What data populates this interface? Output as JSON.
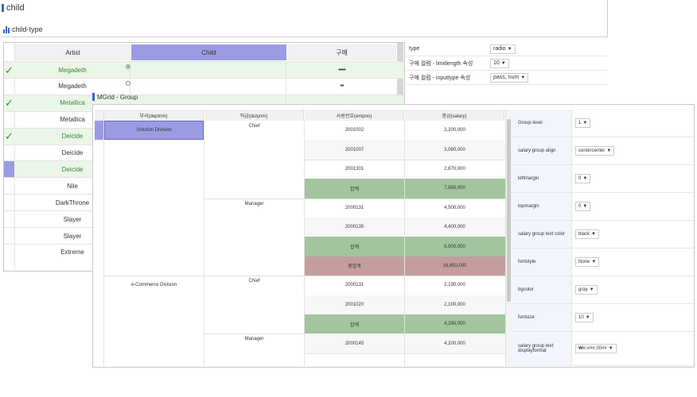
{
  "page": {
    "title": "child",
    "subtitle": "child-type"
  },
  "child_grid": {
    "headers": {
      "artist": "Artist",
      "child": "Child",
      "pass": "구매"
    },
    "rows": [
      {
        "artist": "Megadeth",
        "checked": true,
        "highlight": true,
        "green": true,
        "radio": "on",
        "pass": "••••••"
      },
      {
        "artist": "Megadeth",
        "checked": false,
        "highlight": false,
        "green": false,
        "radio": "off",
        "pass": "•••"
      },
      {
        "artist": "Metallica",
        "checked": true,
        "highlight": true,
        "green": true,
        "radio": "",
        "pass": ""
      },
      {
        "artist": "Metallica",
        "checked": false,
        "highlight": false,
        "green": false,
        "radio": "",
        "pass": ""
      },
      {
        "artist": "Deicide",
        "checked": true,
        "highlight": true,
        "green": true,
        "radio": "",
        "pass": ""
      },
      {
        "artist": "Deicide",
        "checked": false,
        "highlight": false,
        "green": false,
        "radio": "",
        "pass": ""
      },
      {
        "artist": "Deicide",
        "checked": false,
        "selected": true,
        "highlight": true,
        "green": true,
        "radio": "",
        "pass": ""
      },
      {
        "artist": "Nile",
        "checked": false,
        "highlight": false,
        "green": false,
        "radio": "",
        "pass": ""
      },
      {
        "artist": "DarkThrone",
        "checked": false,
        "highlight": false,
        "green": false,
        "radio": "",
        "pass": ""
      },
      {
        "artist": "Slayer",
        "checked": false,
        "highlight": false,
        "green": false,
        "radio": "",
        "pass": ""
      },
      {
        "artist": "Slayer",
        "checked": false,
        "highlight": false,
        "green": false,
        "radio": "",
        "pass": ""
      },
      {
        "artist": "Extreme",
        "checked": false,
        "highlight": false,
        "green": false,
        "radio": "",
        "pass": ""
      }
    ]
  },
  "child_props": [
    {
      "label": "type",
      "value": "radio"
    },
    {
      "label": "구매 컬럼 - limitlength 속성",
      "value": "10"
    },
    {
      "label": "구매 컬럼 - inputtype 속성",
      "value": "pass, num"
    }
  ],
  "mgrid": {
    "title": "MGrid - Group",
    "headers": [
      "부서(deptnm)",
      "직급(dutynm)",
      "사원번호(empno)",
      "봉급(salary)"
    ],
    "rows": [
      {
        "dept": "Solution Division",
        "duty": "Chief",
        "empno": "2001002",
        "salary": "2,200,000",
        "type": "data"
      },
      {
        "dept": "",
        "duty": "",
        "empno": "2001007",
        "salary": "3,080,000",
        "type": "data"
      },
      {
        "dept": "",
        "duty": "",
        "empno": "2001301",
        "salary": "2,670,000",
        "type": "data"
      },
      {
        "dept": "",
        "duty": "",
        "empno": "합계",
        "salary": "7,950,000",
        "type": "subtotal"
      },
      {
        "dept": "",
        "duty": "Manager",
        "empno": "2000131",
        "salary": "4,500,000",
        "type": "data"
      },
      {
        "dept": "",
        "duty": "",
        "empno": "2000135",
        "salary": "4,400,000",
        "type": "data"
      },
      {
        "dept": "",
        "duty": "",
        "empno": "합계",
        "salary": "8,900,000",
        "type": "subtotal"
      },
      {
        "dept": "",
        "duty": "",
        "empno": "총합계",
        "salary": "16,850,000",
        "type": "total"
      },
      {
        "dept": "e-Commerce Division",
        "duty": "Chief",
        "empno": "2000131",
        "salary": "2,190,000",
        "type": "data"
      },
      {
        "dept": "",
        "duty": "",
        "empno": "2001020",
        "salary": "2,100,000",
        "type": "data"
      },
      {
        "dept": "",
        "duty": "",
        "empno": "합계",
        "salary": "4,290,000",
        "type": "subtotal"
      },
      {
        "dept": "",
        "duty": "Manager",
        "empno": "2000145",
        "salary": "4,200,000",
        "type": "data"
      }
    ]
  },
  "mgrid_props": [
    {
      "label": "Group level",
      "value": "1"
    },
    {
      "label": "salary group align",
      "value": "centercenter"
    },
    {
      "label": "leftmargin",
      "value": "0"
    },
    {
      "label": "topmargin",
      "value": "0"
    },
    {
      "label": "salary group text color",
      "value": "black"
    },
    {
      "label": "fontstyle",
      "value": "None"
    },
    {
      "label": "bgcolor",
      "value": "gray"
    },
    {
      "label": "fontsize",
      "value": "10"
    },
    {
      "label": "salary group text displayformat",
      "value": "₩#,###,00##"
    }
  ],
  "colors": {
    "accent": "#9b9be3",
    "green": "#a3c49e",
    "red": "#c49e9e",
    "highlight": "#ebf5e8",
    "check": "#2e8b2e"
  }
}
